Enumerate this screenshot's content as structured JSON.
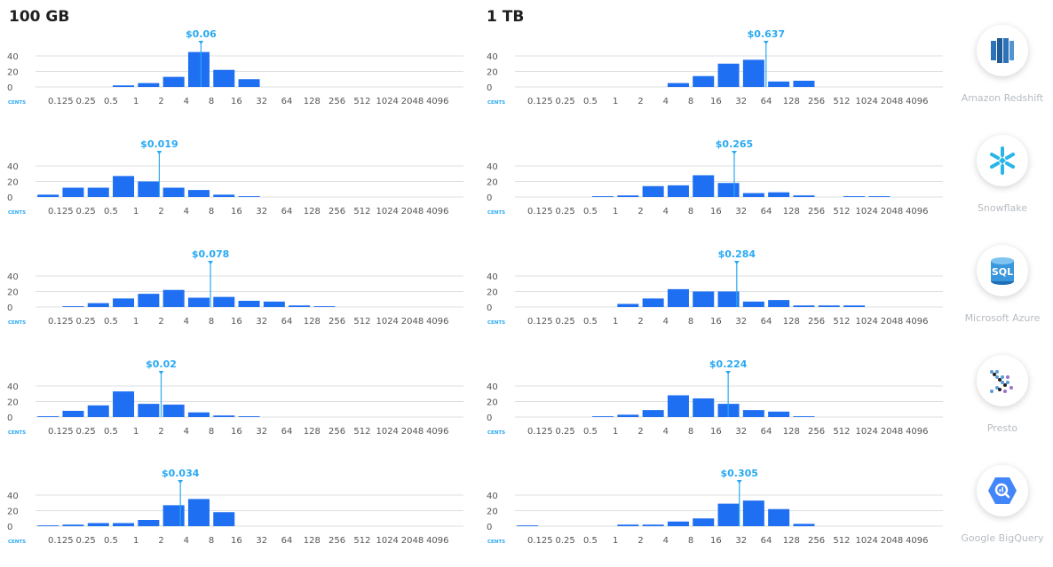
{
  "headers": {
    "left": "100 GB",
    "right": "1 TB"
  },
  "axis_unit": "CENTS",
  "tick_labels": [
    "0.125",
    "0.25",
    "0.5",
    "1",
    "2",
    "4",
    "8",
    "16",
    "32",
    "64",
    "128",
    "256",
    "512",
    "1024",
    "2048",
    "4096"
  ],
  "y_ticks": [
    0,
    20,
    40
  ],
  "colors": {
    "bar": "#1f6ff2",
    "marker": "#29a9f2",
    "axis": "#dcdfe3",
    "tick_text": "#555555"
  },
  "vendors": [
    {
      "name": "Amazon Redshift",
      "icon": "amazon-redshift-icon"
    },
    {
      "name": "Snowflake",
      "icon": "snowflake-icon"
    },
    {
      "name": "Microsoft Azure",
      "icon": "microsoft-azure-sql-icon",
      "stamp": "SQL"
    },
    {
      "name": "Presto",
      "icon": "presto-icon"
    },
    {
      "name": "Google BigQuery",
      "icon": "google-bigquery-icon"
    }
  ],
  "chart_data": [
    {
      "type": "bar",
      "vendor": "Amazon Redshift",
      "dataset": "100 GB",
      "xlabel": "CENTS",
      "ylim": [
        0,
        48
      ],
      "categories": [
        "0.125",
        "0.25",
        "0.5",
        "1",
        "2",
        "4",
        "8",
        "16",
        "32",
        "64",
        "128",
        "256",
        "512",
        "1024",
        "2048",
        "4096"
      ],
      "values": [
        0,
        0,
        0,
        2,
        5,
        13,
        45,
        22,
        10,
        0,
        0,
        0,
        0,
        0,
        0,
        0
      ],
      "marker_label": "$0.06",
      "marker_value_cents": 6
    },
    {
      "type": "bar",
      "vendor": "Amazon Redshift",
      "dataset": "1 TB",
      "xlabel": "CENTS",
      "ylim": [
        0,
        48
      ],
      "categories": [
        "0.125",
        "0.25",
        "0.5",
        "1",
        "2",
        "4",
        "8",
        "16",
        "32",
        "64",
        "128",
        "256",
        "512",
        "1024",
        "2048",
        "4096"
      ],
      "values": [
        0,
        0,
        0,
        0,
        0,
        0,
        5,
        14,
        30,
        35,
        7,
        8,
        0,
        0,
        0,
        0
      ],
      "marker_label": "$0.637",
      "marker_value_cents": 63.7
    },
    {
      "type": "bar",
      "vendor": "Snowflake",
      "dataset": "100 GB",
      "xlabel": "CENTS",
      "ylim": [
        0,
        48
      ],
      "categories": [
        "0.125",
        "0.25",
        "0.5",
        "1",
        "2",
        "4",
        "8",
        "16",
        "32",
        "64",
        "128",
        "256",
        "512",
        "1024",
        "2048",
        "4096"
      ],
      "values": [
        3,
        12,
        12,
        27,
        20,
        12,
        9,
        3,
        1,
        0,
        0,
        0,
        0,
        0,
        0,
        0
      ],
      "marker_label": "$0.019",
      "marker_value_cents": 1.9
    },
    {
      "type": "bar",
      "vendor": "Snowflake",
      "dataset": "1 TB",
      "xlabel": "CENTS",
      "ylim": [
        0,
        48
      ],
      "categories": [
        "0.125",
        "0.25",
        "0.5",
        "1",
        "2",
        "4",
        "8",
        "16",
        "32",
        "64",
        "128",
        "256",
        "512",
        "1024",
        "2048",
        "4096"
      ],
      "values": [
        0,
        0,
        0,
        1,
        2,
        14,
        15,
        28,
        18,
        5,
        6,
        2,
        0,
        1,
        1,
        0
      ],
      "marker_label": "$0.265",
      "marker_value_cents": 26.5
    },
    {
      "type": "bar",
      "vendor": "Microsoft Azure",
      "dataset": "100 GB",
      "xlabel": "CENTS",
      "ylim": [
        0,
        48
      ],
      "categories": [
        "0.125",
        "0.25",
        "0.5",
        "1",
        "2",
        "4",
        "8",
        "16",
        "32",
        "64",
        "128",
        "256",
        "512",
        "1024",
        "2048",
        "4096"
      ],
      "values": [
        0,
        1,
        5,
        11,
        17,
        22,
        12,
        13,
        8,
        7,
        2,
        1,
        0,
        0,
        0,
        0
      ],
      "marker_label": "$0.078",
      "marker_value_cents": 7.8
    },
    {
      "type": "bar",
      "vendor": "Microsoft Azure",
      "dataset": "1 TB",
      "xlabel": "CENTS",
      "ylim": [
        0,
        48
      ],
      "categories": [
        "0.125",
        "0.25",
        "0.5",
        "1",
        "2",
        "4",
        "8",
        "16",
        "32",
        "64",
        "128",
        "256",
        "512",
        "1024",
        "2048",
        "4096"
      ],
      "values": [
        0,
        0,
        0,
        0,
        4,
        11,
        23,
        20,
        20,
        7,
        9,
        2,
        2,
        2,
        0,
        0
      ],
      "marker_label": "$0.284",
      "marker_value_cents": 28.4
    },
    {
      "type": "bar",
      "vendor": "Presto",
      "dataset": "100 GB",
      "xlabel": "CENTS",
      "ylim": [
        0,
        48
      ],
      "categories": [
        "0.125",
        "0.25",
        "0.5",
        "1",
        "2",
        "4",
        "8",
        "16",
        "32",
        "64",
        "128",
        "256",
        "512",
        "1024",
        "2048",
        "4096"
      ],
      "values": [
        1,
        8,
        15,
        33,
        17,
        16,
        6,
        2,
        1,
        0,
        0,
        0,
        0,
        0,
        0,
        0
      ],
      "marker_label": "$0.02",
      "marker_value_cents": 2
    },
    {
      "type": "bar",
      "vendor": "Presto",
      "dataset": "1 TB",
      "xlabel": "CENTS",
      "ylim": [
        0,
        48
      ],
      "categories": [
        "0.125",
        "0.25",
        "0.5",
        "1",
        "2",
        "4",
        "8",
        "16",
        "32",
        "64",
        "128",
        "256",
        "512",
        "1024",
        "2048",
        "4096"
      ],
      "values": [
        0,
        0,
        0,
        1,
        3,
        9,
        28,
        24,
        17,
        9,
        7,
        1,
        0,
        0,
        0,
        0
      ],
      "marker_label": "$0.224",
      "marker_value_cents": 22.4
    },
    {
      "type": "bar",
      "vendor": "Google BigQuery",
      "dataset": "100 GB",
      "xlabel": "CENTS",
      "ylim": [
        0,
        48
      ],
      "categories": [
        "0.125",
        "0.25",
        "0.5",
        "1",
        "2",
        "4",
        "8",
        "16",
        "32",
        "64",
        "128",
        "256",
        "512",
        "1024",
        "2048",
        "4096"
      ],
      "values": [
        1,
        2,
        4,
        4,
        8,
        27,
        35,
        18,
        0,
        0,
        0,
        0,
        0,
        0,
        0,
        0
      ],
      "marker_label": "$0.034",
      "marker_value_cents": 3.4
    },
    {
      "type": "bar",
      "vendor": "Google BigQuery",
      "dataset": "1 TB",
      "xlabel": "CENTS",
      "ylim": [
        0,
        48
      ],
      "categories": [
        "0.125",
        "0.25",
        "0.5",
        "1",
        "2",
        "4",
        "8",
        "16",
        "32",
        "64",
        "128",
        "256",
        "512",
        "1024",
        "2048",
        "4096"
      ],
      "values": [
        1,
        0,
        0,
        0,
        2,
        2,
        6,
        10,
        29,
        33,
        22,
        3,
        0,
        0,
        0,
        0
      ],
      "marker_label": "$0.305",
      "marker_value_cents": 30.5
    }
  ]
}
